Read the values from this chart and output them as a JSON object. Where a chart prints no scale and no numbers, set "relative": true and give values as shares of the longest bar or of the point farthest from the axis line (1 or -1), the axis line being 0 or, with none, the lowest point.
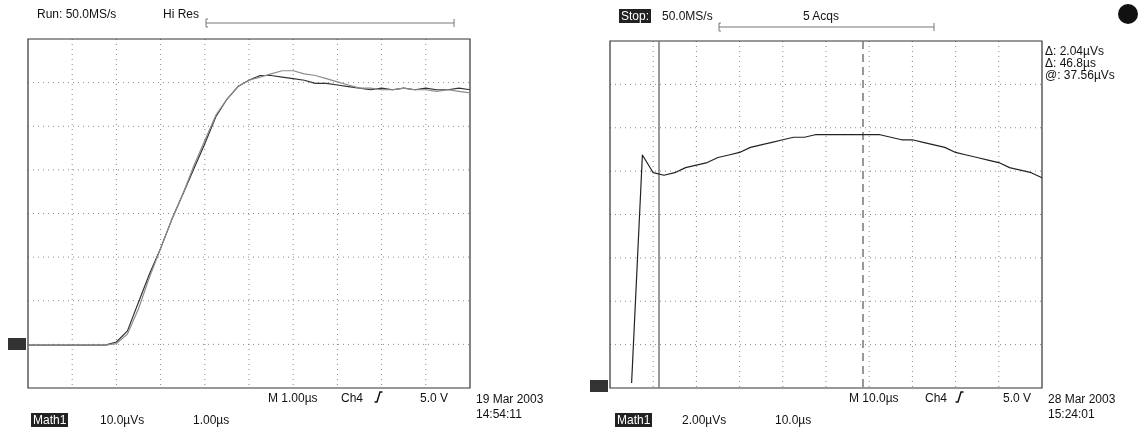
{
  "chart_data": [
    {
      "type": "line",
      "relative": true,
      "grid": true,
      "categories": [
        null,
        null,
        null,
        null,
        null,
        null,
        null,
        null,
        null,
        null,
        null,
        null,
        null,
        null,
        null,
        null,
        null,
        null,
        null,
        null,
        null,
        null,
        null,
        null,
        null,
        null,
        null,
        null,
        null,
        null,
        null,
        null,
        null,
        null,
        null,
        null,
        null,
        null,
        null,
        null,
        null
      ],
      "series": [
        {
          "color": "#8c8c8c",
          "values": [
            0.135,
            0.135,
            0.135,
            0.135,
            0.135,
            0.135,
            0.135,
            0.135,
            0.14,
            0.17,
            0.25,
            0.35,
            0.44,
            0.53,
            0.61,
            0.7,
            0.78,
            0.86,
            0.91,
            0.95,
            0.97,
            0.98,
            0.99,
            1,
            1,
            0.99,
            0.985,
            0.975,
            0.965,
            0.955,
            0.945,
            0.945,
            0.94,
            0.94,
            0.945,
            0.94,
            0.94,
            0.935,
            0.94,
            0.935,
            0.93
          ]
        },
        {
          "color": "#333333",
          "values": [
            0.135,
            0.135,
            0.135,
            0.135,
            0.135,
            0.135,
            0.135,
            0.135,
            0.145,
            0.18,
            0.27,
            0.36,
            0.44,
            0.53,
            0.61,
            0.69,
            0.77,
            0.855,
            0.91,
            0.95,
            0.97,
            0.985,
            0.985,
            0.98,
            0.975,
            0.97,
            0.96,
            0.96,
            0.955,
            0.95,
            0.945,
            0.94,
            0.945,
            0.94,
            0.945,
            0.94,
            0.945,
            0.94,
            0.94,
            0.945,
            0.94
          ]
        }
      ],
      "annotations": [
        "Run: 50.0MS/s",
        "Hi Res",
        "M 1.00µs",
        "Ch4",
        "5.0 V",
        "19 Mar 2003",
        "14:54:11",
        "Math1",
        "10.0µVs",
        "1.00µs"
      ]
    },
    {
      "type": "line",
      "relative": true,
      "grid": true,
      "categories": [
        null,
        null,
        null,
        null,
        null,
        null,
        null,
        null,
        null,
        null,
        null,
        null,
        null,
        null,
        null,
        null,
        null,
        null,
        null,
        null,
        null,
        null,
        null,
        null,
        null,
        null,
        null,
        null,
        null,
        null,
        null,
        null,
        null,
        null,
        null,
        null,
        null,
        null,
        null,
        null,
        null
      ],
      "series": [
        {
          "color": "#222222",
          "values": [
            null,
            null,
            0.02,
            0.92,
            0.85,
            0.84,
            0.85,
            0.87,
            0.88,
            0.89,
            0.91,
            0.92,
            0.93,
            0.95,
            0.96,
            0.97,
            0.98,
            0.99,
            0.99,
            1,
            1,
            1,
            1,
            1,
            1,
            1,
            0.99,
            0.98,
            0.98,
            0.97,
            0.96,
            0.95,
            0.93,
            0.92,
            0.91,
            0.9,
            0.89,
            0.87,
            0.86,
            0.85,
            0.83
          ]
        }
      ],
      "annotations": [
        "Stop:",
        "50.0MS/s",
        "5 Acqs",
        "Δ: 2.04µVs",
        "Δ: 46.8µs",
        "@: 37.56µVs",
        "M 10.0µs",
        "Ch4",
        "5.0 V",
        "28 Mar 2003",
        "15:24:01",
        "Math1",
        "2.00µVs",
        "10.0µs"
      ]
    }
  ]
}
